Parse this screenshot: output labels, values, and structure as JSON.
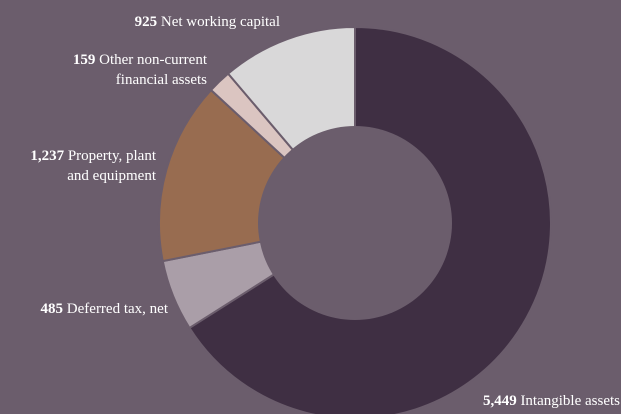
{
  "chart_data": {
    "type": "pie",
    "variant": "donut",
    "total": 8255,
    "slices": [
      {
        "value": 5449,
        "label": "Intangible assets",
        "value_text": "5,449",
        "label_lines": [
          "Intangible assets"
        ],
        "color": "#3f2f43"
      },
      {
        "value": 485,
        "label": "Deferred tax, net",
        "value_text": "485",
        "label_lines": [
          "Deferred tax, net"
        ],
        "color": "#aa9ea8"
      },
      {
        "value": 1237,
        "label": "Property, plant and equipment",
        "value_text": "1,237",
        "label_lines": [
          "Property, plant",
          "and equipment"
        ],
        "color": "#986c50"
      },
      {
        "value": 159,
        "label": "Other non-current financial assets",
        "value_text": "159",
        "label_lines": [
          "Other non-current",
          "financial assets"
        ],
        "color": "#dbc5c1"
      },
      {
        "value": 925,
        "label": "Net working capital",
        "value_text": "925",
        "label_lines": [
          "Net working capital"
        ],
        "color": "#d9d8d9"
      }
    ],
    "background_color": "#6b5d6c",
    "label_color": "#ffffff"
  }
}
